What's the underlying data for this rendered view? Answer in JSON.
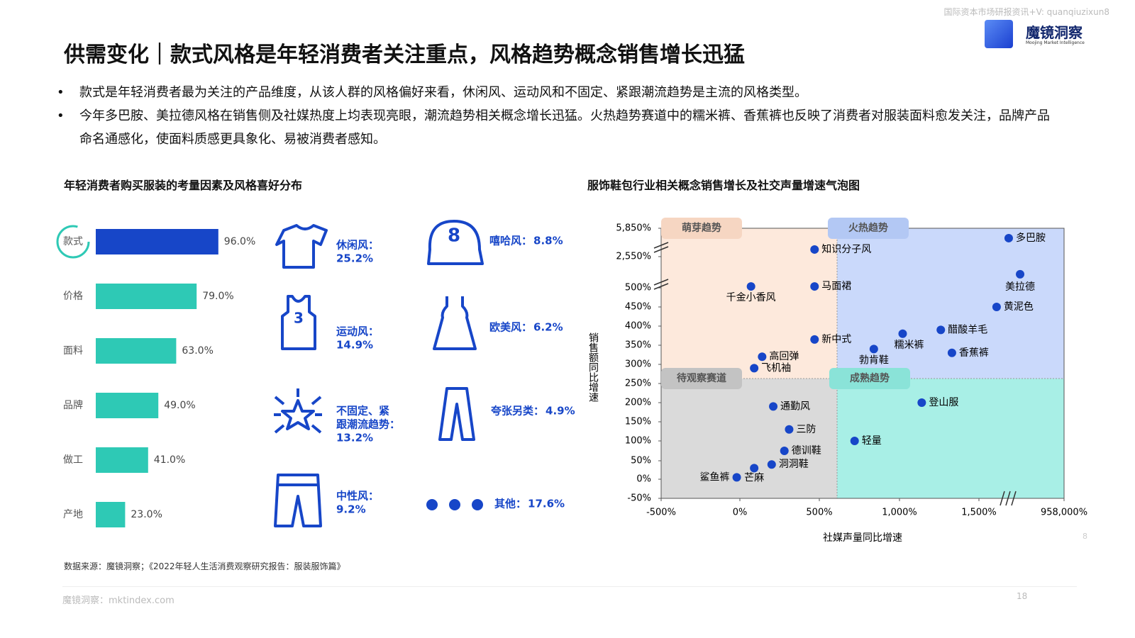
{
  "header": {
    "watermark": "国际资本市场研报资讯+V: quanqiuzixun8",
    "logo_name": "魔镜洞察",
    "logo_tagline": "Moojing Market Intelligence",
    "title": "供需变化｜款式风格是年轻消费者关注重点，风格趋势概念销售增长迅猛"
  },
  "bullets": [
    "款式是年轻消费者最为关注的产品维度，从该人群的风格偏好来看，休闲风、运动风和不固定、紧跟潮流趋势是主流的风格类型。",
    "今年多巴胺、美拉德风格在销售侧及社媒热度上均表现亮眼，潮流趋势相关概念增长迅猛。火热趋势赛道中的糯米裤、香蕉裤也反映了消费者对服装面料愈发关注，品牌产品命名通感化，使面料质感更具象化、易被消费者感知。"
  ],
  "chart_data": [
    {
      "type": "bar",
      "title": "年轻消费者购买服装的考量因素及风格喜好分布",
      "categories": [
        "款式",
        "价格",
        "面料",
        "品牌",
        "做工",
        "产地"
      ],
      "values": [
        96,
        79,
        63,
        49,
        41,
        23
      ],
      "value_labels": [
        "96.0%",
        "79.0%",
        "63.0%",
        "49.0%",
        "41.0%",
        "23.0%"
      ],
      "colors": [
        "#1746c8",
        "#2ec9b5",
        "#2ec9b5",
        "#2ec9b5",
        "#2ec9b5",
        "#2ec9b5"
      ]
    },
    {
      "type": "scatter",
      "title": "服饰鞋包行业相关概念销售增长及社交声量增速气泡图",
      "x_label": "社媒声量同比增速",
      "y_label": "销售额同比增速",
      "labels": [
        "多巴胺",
        "美拉德",
        "知识分子风",
        "千金小香风",
        "马面裙",
        "黄泥色",
        "醋酸羊毛",
        "糯米裤",
        "新中式",
        "勃肯鞋",
        "香蕉裤",
        "高回弹",
        "飞机袖",
        "登山服",
        "通勤风",
        "三防",
        "轻量",
        "德训鞋",
        "洞洞鞋",
        "芒麻",
        "鲨鱼裤"
      ],
      "x": [
        336000,
        464000,
        470,
        70,
        470,
        200000,
        1260,
        1020,
        470,
        840,
        1330,
        140,
        90,
        1140,
        210,
        310,
        720,
        280,
        200,
        90,
        -20
      ],
      "series": [
        {
          "color": "#1746c8",
          "values": [
            4700,
            1390,
            3380,
            590,
            590,
            450,
            390,
            380,
            365,
            340,
            330,
            320,
            290,
            200,
            190,
            130,
            100,
            75,
            40,
            30,
            5
          ]
        }
      ],
      "xlim": [
        -500,
        958000
      ],
      "xticks": [
        {
          "value": -500,
          "label": "-500%"
        },
        {
          "value": 0,
          "label": "0%"
        },
        {
          "value": 500,
          "label": "500%"
        },
        {
          "value": 1000,
          "label": "1,000%"
        },
        {
          "value": 1500,
          "label": "1,500%"
        },
        {
          "value": 958000,
          "label": "958,000%"
        }
      ],
      "ylim": [
        -50,
        5850
      ],
      "yticks": [
        {
          "value": -50,
          "label": "-50%"
        },
        {
          "value": 0,
          "label": "0%"
        },
        {
          "value": 50,
          "label": "50%"
        },
        {
          "value": 100,
          "label": "100%"
        },
        {
          "value": 150,
          "label": "150%"
        },
        {
          "value": 200,
          "label": "200%"
        },
        {
          "value": 250,
          "label": "250%"
        },
        {
          "value": 300,
          "label": "300%"
        },
        {
          "value": 350,
          "label": "350%"
        },
        {
          "value": 400,
          "label": "400%"
        },
        {
          "value": 450,
          "label": "450%"
        },
        {
          "value": 500,
          "label": "500%"
        },
        {
          "value": 2550,
          "label": "2,550%"
        },
        {
          "value": 5850,
          "label": "5,850%"
        }
      ],
      "quadrants": [
        "萌芽趋势",
        "火热趋势",
        "待观察赛道",
        "成熟趋势"
      ],
      "quadrant_colors": [
        "#fde9dc",
        "#cad9fb",
        "#dadada",
        "#a8efe6"
      ]
    }
  ],
  "styles": [
    {
      "name": "休闲风：",
      "share": "25.2%"
    },
    {
      "name": "运动风：",
      "share": "14.9%"
    },
    {
      "name": "不固定、紧跟潮流趋势：",
      "share": "13.2%"
    },
    {
      "name": "中性风：",
      "share": "9.2%"
    },
    {
      "name": "嘻哈风：",
      "share": "8.8%"
    },
    {
      "name": "欧美风：",
      "share": "6.2%"
    },
    {
      "name": "夸张另类：",
      "share": "4.9%"
    },
    {
      "name": "其他：",
      "share": "17.6%"
    }
  ],
  "footer": {
    "source": "数据来源：魔镜洞察；《2022年轻人生活消费观察研究报告：服装服饰篇》",
    "site": "魔镜洞察：mktindex.com",
    "page": "18",
    "chart_page": "8"
  }
}
